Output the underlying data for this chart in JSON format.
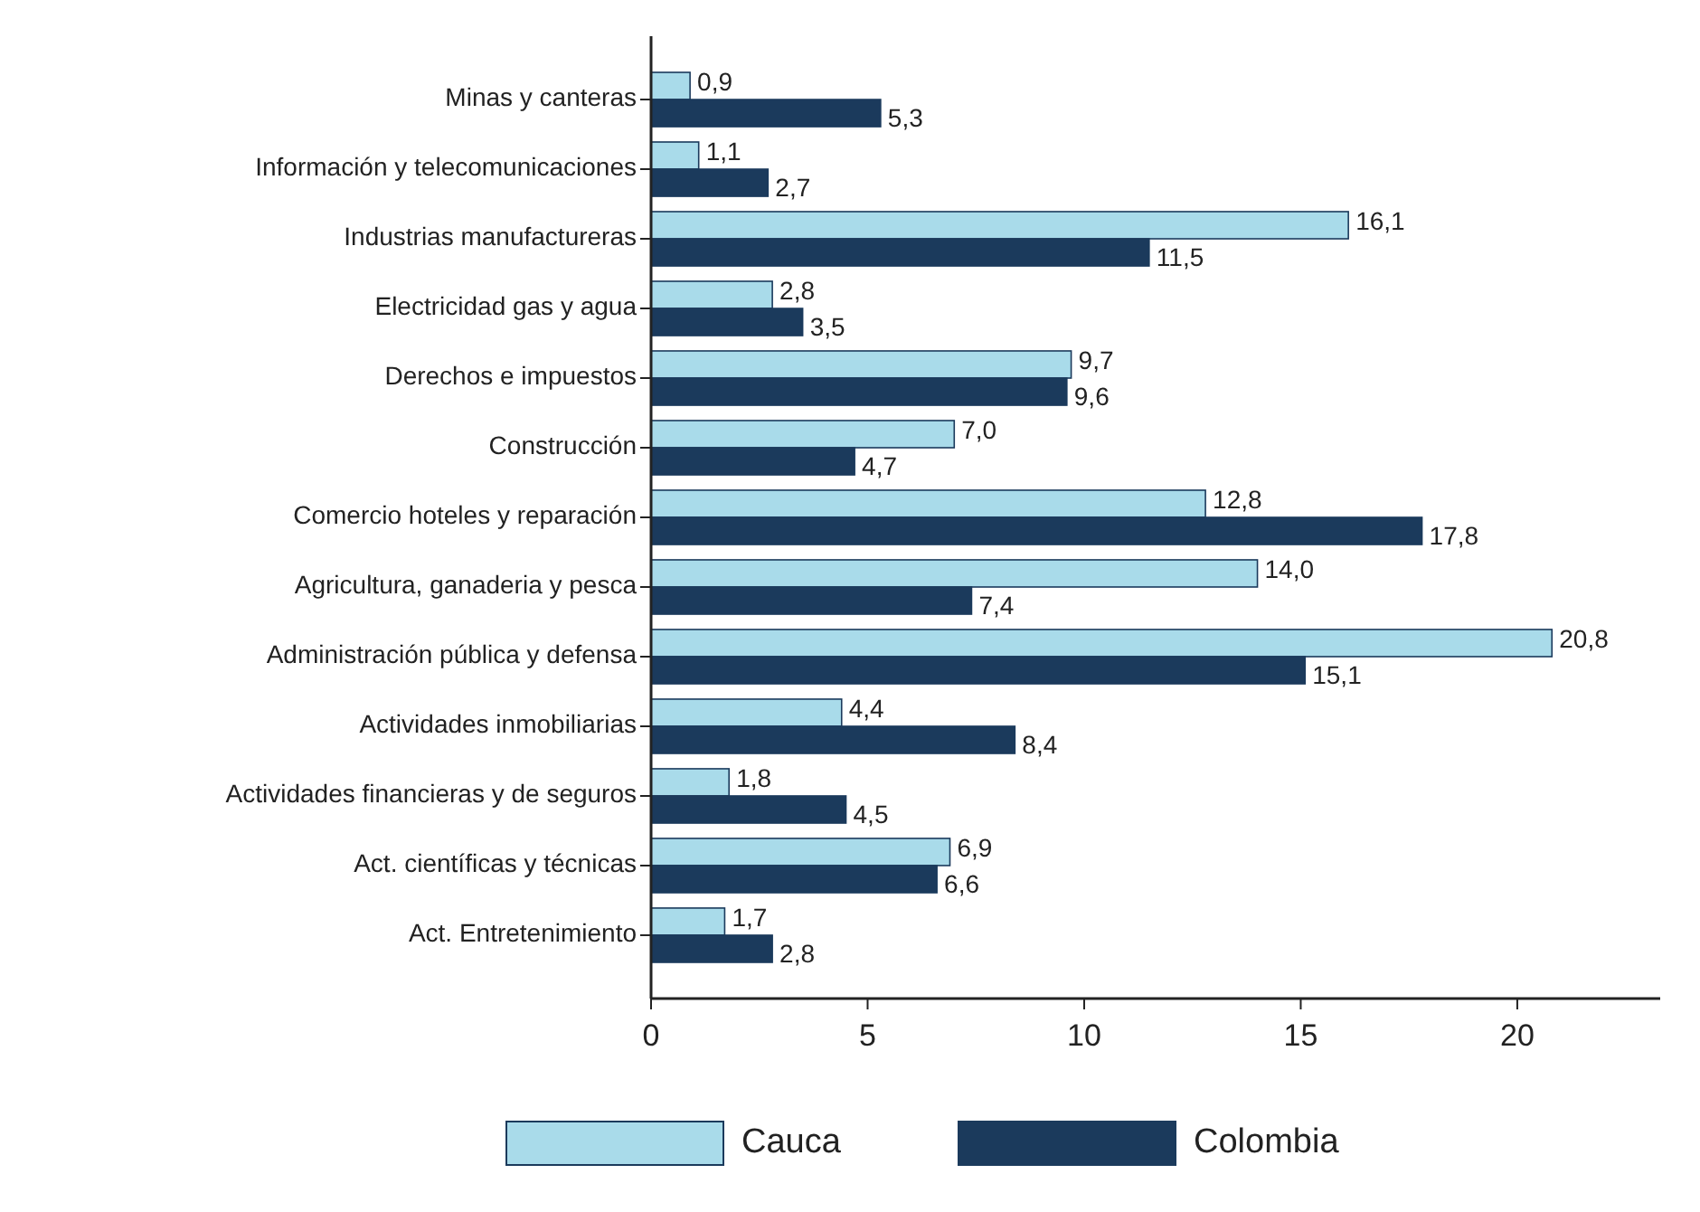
{
  "chart_data": {
    "type": "bar",
    "orientation": "horizontal",
    "categories": [
      "Minas y canteras",
      "Información y telecomunicaciones",
      "Industrias manufactureras",
      "Electricidad gas y agua",
      "Derechos e impuestos",
      "Construcción",
      "Comercio hoteles y reparación",
      "Agricultura, ganaderia y pesca",
      "Administración pública y defensa",
      "Actividades inmobiliarias",
      "Actividades financieras y de seguros",
      "Act. científicas y técnicas",
      "Act. Entretenimiento"
    ],
    "series": [
      {
        "name": "Cauca",
        "color": "#a9dbea",
        "values": [
          0.9,
          1.1,
          16.1,
          2.8,
          9.7,
          7.0,
          12.8,
          14.0,
          20.8,
          4.4,
          1.8,
          6.9,
          1.7
        ],
        "value_labels": [
          "0,9",
          "1,1",
          "16,1",
          "2,8",
          "9,7",
          "7,0",
          "12,8",
          "14,0",
          "20,8",
          "4,4",
          "1,8",
          "6,9",
          "1,7"
        ]
      },
      {
        "name": "Colombia",
        "color": "#1b3a5c",
        "values": [
          5.3,
          2.7,
          11.5,
          3.5,
          9.6,
          4.7,
          17.8,
          7.4,
          15.1,
          8.4,
          4.5,
          6.6,
          2.8
        ],
        "value_labels": [
          "5,3",
          "2,7",
          "11,5",
          "3,5",
          "9,6",
          "4,7",
          "17,8",
          "7,4",
          "15,1",
          "8,4",
          "4,5",
          "6,6",
          "2,8"
        ]
      }
    ],
    "xlim": [
      0,
      23.3
    ],
    "xticks": [
      0,
      5,
      10,
      15,
      20
    ],
    "legend": "bottom",
    "grid": false
  }
}
